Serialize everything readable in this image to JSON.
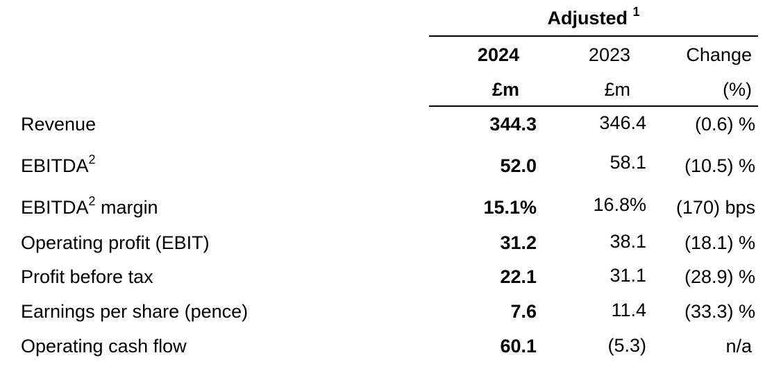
{
  "header": {
    "group_label": "Adjusted",
    "group_note": "1",
    "columns": [
      {
        "year": "2024",
        "unit": "£m"
      },
      {
        "year": "2023",
        "unit": "£m"
      },
      {
        "year": "Change",
        "unit": "(%)"
      }
    ]
  },
  "rows": [
    {
      "label": "Revenue",
      "sup": "",
      "suffix": "",
      "v2024": "344.3",
      "v2023": "346.4",
      "change": "(0.6) %"
    },
    {
      "label": "EBITDA",
      "sup": "2",
      "suffix": "",
      "v2024": "52.0",
      "v2023": "58.1",
      "change": "(10.5) %"
    },
    {
      "label": "EBITDA",
      "sup": "2",
      "suffix": " margin",
      "v2024": "15.1%",
      "v2023": "16.8%",
      "change": "(170) bps"
    },
    {
      "label": "Operating profit (EBIT)",
      "sup": "",
      "suffix": "",
      "v2024": "31.2",
      "v2023": "38.1",
      "change": "(18.1) %"
    },
    {
      "label": "Profit before tax",
      "sup": "",
      "suffix": "",
      "v2024": "22.1",
      "v2023": "31.1",
      "change": "(28.9) %"
    },
    {
      "label": "Earnings per share (pence)",
      "sup": "",
      "suffix": "",
      "v2024": "7.6",
      "v2023": "11.4",
      "change": "(33.3) %"
    },
    {
      "label": "Operating cash flow",
      "sup": "",
      "suffix": "",
      "v2024": "60.1",
      "v2023": "(5.3)",
      "change": "n/a"
    }
  ]
}
